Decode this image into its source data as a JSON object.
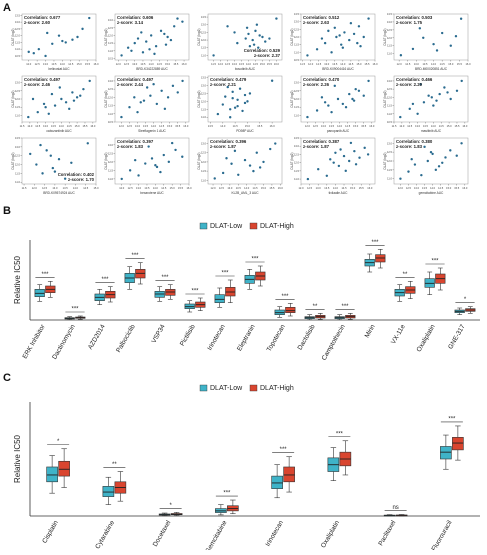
{
  "panel_labels": {
    "a": "A",
    "b": "B",
    "c": "C"
  },
  "colors": {
    "low": "#3fb3c8",
    "high": "#d9452f",
    "dot": "#2a6b8f"
  },
  "scatter_ylabel": "DLAT (log2)",
  "chart_data": [
    {
      "type": "scatter",
      "panel": "A",
      "plots": [
        {
          "xlabel": "belinostat AUC",
          "corr": "Correlation: 0.677",
          "z": "z-score: 2.60",
          "pos": "tl",
          "x": [
            12.0,
            12.6,
            13.0,
            13.4,
            13.1,
            14.2,
            14.6,
            14.9,
            15.2,
            15.6,
            12.3,
            13.8,
            14.0
          ],
          "y": [
            10.8,
            11.0,
            10.5,
            11.4,
            12.2,
            11.5,
            11.7,
            11.9,
            12.5,
            13.3,
            10.7,
            12.0,
            11.6
          ]
        },
        {
          "xlabel": "BRD-K34222889 AUC",
          "corr": "Correlation: 0.606",
          "z": "z-score: 3.14",
          "pos": "tl",
          "x": [
            12.2,
            12.8,
            13.0,
            13.5,
            13.7,
            14.0,
            14.3,
            14.8,
            15.0,
            15.4,
            13.2,
            14.6,
            15.9,
            13.9,
            14.2,
            12.6,
            15.6,
            14.9,
            13.4,
            15.2
          ],
          "y": [
            10.7,
            11.0,
            11.5,
            10.9,
            11.6,
            12.0,
            11.3,
            12.1,
            11.9,
            12.6,
            11.8,
            12.3,
            12.9,
            11.1,
            10.8,
            11.2,
            13.1,
            11.4,
            12.2,
            11.7
          ]
        },
        {
          "xlabel": "bosutinib AUC",
          "corr": "Correlation: 0.529",
          "z": "z-score: 2.37",
          "pos": "br",
          "x": [
            11.5,
            12.5,
            13.2,
            13.8,
            14.0,
            14.3,
            14.5,
            14.7,
            15.0,
            15.2,
            14.1,
            13.9,
            14.8,
            16.0,
            13.0,
            14.4,
            14.6,
            15.5
          ],
          "y": [
            11.0,
            12.9,
            11.8,
            12.1,
            12.4,
            12.0,
            12.6,
            11.5,
            12.2,
            11.9,
            11.6,
            12.8,
            12.3,
            13.4,
            12.5,
            11.7,
            13.0,
            12.1
          ]
        },
        {
          "xlabel": "BRD-K09004416 AUC",
          "corr": "Correlation: 0.512",
          "z": "z-score: 2.63",
          "pos": "tl",
          "x": [
            11.8,
            12.4,
            12.9,
            13.3,
            13.6,
            13.9,
            14.1,
            14.4,
            14.7,
            15.0,
            15.3,
            15.6,
            13.1,
            14.0,
            14.9,
            12.7,
            13.5,
            14.5,
            15.1,
            13.8
          ],
          "y": [
            10.8,
            11.2,
            11.6,
            11.0,
            12.0,
            11.5,
            12.3,
            11.8,
            12.2,
            12.7,
            12.0,
            13.2,
            12.4,
            11.3,
            11.6,
            11.9,
            12.6,
            12.9,
            11.4,
            12.1
          ]
        },
        {
          "xlabel": "BRD-M00020851 AUC",
          "corr": "Correlation: 0.503",
          "z": "z-score: 1.75",
          "pos": "tl",
          "x": [
            12.1,
            12.8,
            13.4,
            14.0,
            14.5,
            15.0,
            15.6,
            13.2,
            14.2,
            15.3
          ],
          "y": [
            10.9,
            11.3,
            12.0,
            11.6,
            12.3,
            11.5,
            13.2,
            12.6,
            11.2,
            12.1
          ]
        },
        {
          "xlabel": "cabozantinib AUC",
          "corr": "Correlation: 0.497",
          "z": "z-score: 2.46",
          "pos": "tl",
          "x": [
            11.9,
            12.5,
            12.9,
            13.2,
            13.6,
            14.0,
            14.3,
            14.7,
            15.0,
            15.4,
            15.8,
            13.4,
            14.5,
            12.2,
            13.9,
            14.8,
            15.2,
            13.0
          ],
          "y": [
            10.9,
            11.2,
            11.7,
            11.1,
            11.6,
            12.0,
            11.8,
            12.4,
            12.1,
            12.6,
            13.1,
            12.3,
            11.4,
            12.0,
            12.7,
            11.9,
            12.2,
            11.5
          ]
        },
        {
          "xlabel": "Sleeflagenin 1 AUC",
          "corr": "Correlation: 0.497",
          "z": "z-score: 2.44",
          "pos": "tl",
          "x": [
            12.0,
            12.5,
            13.0,
            13.4,
            13.8,
            14.2,
            14.5,
            14.9,
            15.2,
            15.5,
            13.6,
            14.7,
            12.8,
            15.8,
            14.0,
            13.2
          ],
          "y": [
            10.8,
            11.4,
            11.1,
            11.8,
            12.1,
            11.6,
            12.4,
            12.0,
            12.7,
            12.3,
            12.6,
            11.3,
            12.0,
            13.0,
            12.8,
            11.7
          ]
        },
        {
          "xlabel": "PD98P AUC",
          "corr": "Correlation: 0.479",
          "z": "z-score: 2.21",
          "pos": "tl",
          "x": [
            13.8,
            14.0,
            14.1,
            14.3,
            14.4,
            14.5,
            14.6,
            14.7,
            14.8,
            14.9,
            15.0,
            14.2,
            14.6,
            14.4,
            14.9,
            15.1,
            16.0,
            14.3
          ],
          "y": [
            11.2,
            11.8,
            12.3,
            11.0,
            12.6,
            11.6,
            12.1,
            12.8,
            11.4,
            12.4,
            12.0,
            12.9,
            11.7,
            12.2,
            11.9,
            12.5,
            13.3,
            11.5
          ]
        },
        {
          "xlabel": "panopanib AUC",
          "corr": "Correlation: 0.470",
          "z": "z-score: 2.26",
          "pos": "tl",
          "x": [
            12.0,
            12.6,
            13.1,
            13.5,
            13.9,
            14.2,
            14.6,
            14.9,
            15.2,
            15.5,
            13.7,
            14.4,
            15.0,
            12.9,
            14.8,
            15.8,
            13.3
          ],
          "y": [
            10.9,
            11.3,
            11.8,
            11.2,
            12.0,
            11.7,
            12.3,
            11.9,
            12.5,
            12.2,
            12.8,
            11.5,
            12.6,
            12.1,
            12.0,
            13.1,
            11.6
          ]
        },
        {
          "xlabel": "masitinib AUC",
          "corr": "Correlation: 0.466",
          "z": "z-score: 2.20",
          "pos": "tl",
          "x": [
            11.9,
            12.5,
            13.0,
            13.4,
            13.7,
            14.0,
            14.4,
            14.7,
            15.1,
            15.5,
            13.2,
            14.2,
            14.9,
            15.8,
            12.7,
            13.9
          ],
          "y": [
            10.8,
            11.3,
            11.0,
            11.7,
            12.1,
            11.5,
            12.2,
            12.6,
            11.9,
            12.4,
            12.8,
            11.8,
            12.3,
            13.0,
            11.6,
            12.0
          ]
        },
        {
          "xlabel": "BRD-K09574924 AUC",
          "corr": "Correlation: 0.402",
          "z": "z-score: 1.70",
          "pos": "br",
          "x": [
            11.8,
            12.1,
            12.4,
            12.6,
            12.9,
            13.2,
            13.5,
            13.8,
            12.3,
            12.8,
            13.0,
            14.6
          ],
          "y": [
            12.6,
            12.0,
            11.5,
            12.8,
            11.8,
            12.3,
            11.2,
            12.1,
            13.1,
            12.5,
            11.6,
            13.2
          ]
        },
        {
          "xlabel": "bexarotene AUC",
          "corr": "Correlation: 0.397",
          "z": "z-score: 1.83",
          "pos": "tl",
          "x": [
            12.0,
            12.5,
            13.0,
            13.4,
            13.8,
            14.1,
            14.5,
            14.8,
            15.2,
            15.6,
            13.6,
            14.3,
            12.8,
            15.0,
            14.0
          ],
          "y": [
            11.0,
            11.5,
            11.2,
            11.9,
            12.2,
            11.7,
            12.4,
            12.0,
            12.7,
            12.3,
            12.9,
            11.4,
            12.1,
            13.1,
            11.8
          ]
        },
        {
          "xlabel": "KL2B_AML_3 AUC",
          "corr": "Correlation: 0.396",
          "z": "z-score: 1.87",
          "pos": "tl",
          "x": [
            12.1,
            12.6,
            13.1,
            13.5,
            13.9,
            14.2,
            14.6,
            15.0,
            15.4,
            13.3,
            14.4,
            15.7,
            12.8,
            14.8
          ],
          "y": [
            11.1,
            11.4,
            11.9,
            11.3,
            12.1,
            11.8,
            12.5,
            12.0,
            12.7,
            12.6,
            11.5,
            13.0,
            12.2,
            11.7
          ]
        },
        {
          "xlabel": "tivilaalie AUC",
          "corr": "Correlation: 0.387",
          "z": "z-score: 1.87",
          "pos": "tl",
          "x": [
            12.4,
            13.0,
            13.5,
            13.9,
            14.2,
            14.5,
            14.8,
            15.1,
            15.4,
            15.7,
            14.0,
            14.6,
            15.2,
            13.7,
            14.9,
            15.9,
            14.3
          ],
          "y": [
            11.0,
            11.6,
            11.2,
            12.0,
            11.8,
            12.4,
            12.1,
            12.7,
            12.3,
            12.9,
            12.6,
            11.5,
            11.9,
            12.2,
            13.2,
            12.5,
            12.8
          ]
        },
        {
          "xlabel": "gemcitabine AUC",
          "corr": "Correlation: 0.380",
          "z": "z-score: 1.83",
          "pos": "tl",
          "x": [
            12.0,
            12.5,
            12.9,
            13.3,
            13.7,
            14.0,
            14.4,
            14.8,
            15.1,
            15.5,
            13.5,
            14.2,
            15.8,
            12.7,
            14.6,
            13.9
          ],
          "y": [
            11.0,
            11.4,
            11.8,
            11.2,
            12.0,
            12.4,
            11.7,
            12.2,
            12.6,
            12.3,
            12.8,
            11.5,
            13.0,
            12.1,
            11.9,
            12.5
          ]
        }
      ]
    },
    {
      "type": "box",
      "panel": "B",
      "ylabel": "Relative IC50",
      "legend": {
        "low": "DLAT-Low",
        "high": "DLAT-High",
        "position": "top-center"
      },
      "categories": [
        "ERK Inhibitor",
        "Dactinomycin",
        "AZD2014",
        "Palbociclib",
        "VSP34",
        "Pictilisib",
        "Irinotecan",
        "Eleptranin",
        "Topotecan",
        "Dactolisib",
        "Camptothecin",
        "Mirin",
        "VX-11e",
        "Oxaliplatin",
        "GNE-317"
      ],
      "significance": [
        "***",
        "***",
        "***",
        "***",
        "***",
        "***",
        "***",
        "***",
        "***",
        "**",
        "***",
        "***",
        "**",
        "***",
        "*"
      ],
      "ylim": [
        0,
        12
      ],
      "low": [
        [
          2.8,
          3.5,
          4.0,
          4.6,
          5.3
        ],
        [
          0.05,
          0.15,
          0.25,
          0.35,
          0.5
        ],
        [
          2.3,
          2.9,
          3.4,
          3.9,
          4.6
        ],
        [
          4.6,
          5.6,
          6.3,
          7.0,
          8.0
        ],
        [
          2.8,
          3.4,
          3.9,
          4.3,
          5.0
        ],
        [
          1.2,
          1.7,
          2.0,
          2.4,
          2.9
        ],
        [
          1.9,
          2.6,
          3.1,
          3.8,
          4.8
        ],
        [
          4.6,
          5.5,
          6.1,
          6.7,
          7.6
        ],
        [
          0.4,
          0.8,
          1.1,
          1.5,
          2.0
        ],
        [
          0.05,
          0.2,
          0.35,
          0.5,
          0.8
        ],
        [
          0.05,
          0.2,
          0.35,
          0.5,
          0.8
        ],
        [
          7.2,
          8.1,
          8.6,
          9.1,
          9.9
        ],
        [
          2.8,
          3.6,
          4.1,
          4.6,
          5.3
        ],
        [
          3.8,
          4.9,
          5.5,
          6.2,
          7.2
        ],
        [
          0.8,
          1.1,
          1.3,
          1.5,
          1.8
        ]
      ],
      "high": [
        [
          3.4,
          4.1,
          4.6,
          5.1,
          5.8
        ],
        [
          0.1,
          0.25,
          0.35,
          0.45,
          0.6
        ],
        [
          2.7,
          3.3,
          3.8,
          4.3,
          5.0
        ],
        [
          5.4,
          6.3,
          7.0,
          7.6,
          8.6
        ],
        [
          3.1,
          3.7,
          4.2,
          4.6,
          5.3
        ],
        [
          1.4,
          1.9,
          2.3,
          2.7,
          3.3
        ],
        [
          2.6,
          3.6,
          4.2,
          4.9,
          6.0
        ],
        [
          5.1,
          6.0,
          6.6,
          7.2,
          8.1
        ],
        [
          0.6,
          1.1,
          1.4,
          1.9,
          2.5
        ],
        [
          0.1,
          0.3,
          0.5,
          0.7,
          1.0
        ],
        [
          0.1,
          0.3,
          0.5,
          0.7,
          1.0
        ],
        [
          7.8,
          8.7,
          9.3,
          9.8,
          10.6
        ],
        [
          3.2,
          4.0,
          4.5,
          5.0,
          5.8
        ],
        [
          4.5,
          5.5,
          6.2,
          6.9,
          7.8
        ],
        [
          1.0,
          1.3,
          1.5,
          1.7,
          2.0
        ]
      ]
    },
    {
      "type": "box",
      "panel": "C",
      "ylabel": "Relative IC50",
      "legend": {
        "low": "DLAT-Low",
        "high": "DLAT-High",
        "position": "top-center"
      },
      "categories": [
        "Cisplatin",
        "Cytarabine",
        "Docetaxel",
        "Gemcitabine",
        "Irinotecan",
        "Oxaliplatin",
        "Paclitaxel",
        "5-Fluorouracil"
      ],
      "significance": [
        "*",
        "**",
        "*",
        "***",
        "***",
        "***",
        "ns",
        "***"
      ],
      "ylim": [
        0,
        10
      ],
      "low": [
        [
          2.0,
          3.0,
          3.6,
          4.3,
          5.3
        ],
        [
          1.0,
          1.7,
          2.1,
          2.6,
          3.4
        ],
        [
          0.02,
          0.08,
          0.12,
          0.18,
          0.26
        ],
        [
          0.1,
          0.3,
          0.45,
          0.65,
          1.0
        ],
        [
          1.6,
          2.4,
          2.9,
          3.5,
          4.5
        ],
        [
          3.1,
          3.9,
          4.5,
          5.1,
          6.0
        ],
        [
          0.0,
          0.03,
          0.05,
          0.08,
          0.12
        ],
        [
          4.1,
          5.0,
          5.6,
          6.1,
          7.1
        ]
      ],
      "high": [
        [
          2.5,
          3.5,
          4.1,
          4.8,
          5.9
        ],
        [
          1.3,
          2.0,
          2.5,
          3.0,
          3.9
        ],
        [
          0.04,
          0.11,
          0.15,
          0.22,
          0.32
        ],
        [
          0.2,
          0.45,
          0.65,
          0.9,
          1.4
        ],
        [
          2.1,
          3.0,
          3.6,
          4.3,
          5.2
        ],
        [
          3.6,
          4.4,
          5.0,
          5.6,
          6.6
        ],
        [
          0.0,
          0.03,
          0.06,
          0.09,
          0.13
        ],
        [
          4.9,
          5.8,
          6.4,
          6.9,
          7.9
        ]
      ]
    }
  ]
}
